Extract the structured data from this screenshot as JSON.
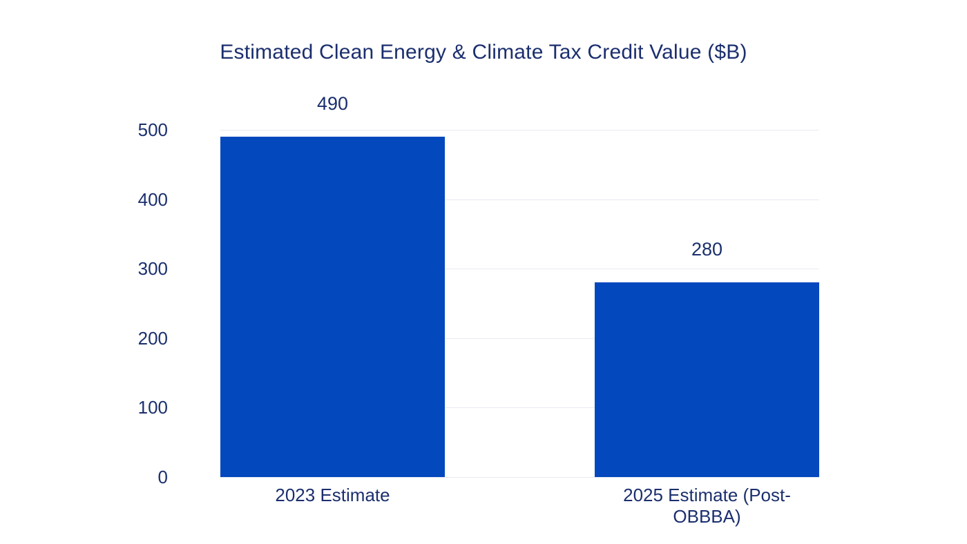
{
  "chart_data": {
    "type": "bar",
    "title": "Estimated Clean Energy & Climate Tax Credit Value ($B)",
    "categories": [
      "2023 Estimate",
      "2025 Estimate (Post-OBBBA)"
    ],
    "values": [
      490,
      280
    ],
    "xlabel": "",
    "ylabel": "",
    "ylim": [
      0,
      500
    ],
    "yticks": [
      0,
      100,
      200,
      300,
      400,
      500
    ],
    "grid": "horizontal",
    "legend": "none",
    "colors": {
      "bar": "#0448BE",
      "text": "#1B2F6E",
      "gridline": "#E9EAF2",
      "background": "#FFFFFF"
    }
  }
}
